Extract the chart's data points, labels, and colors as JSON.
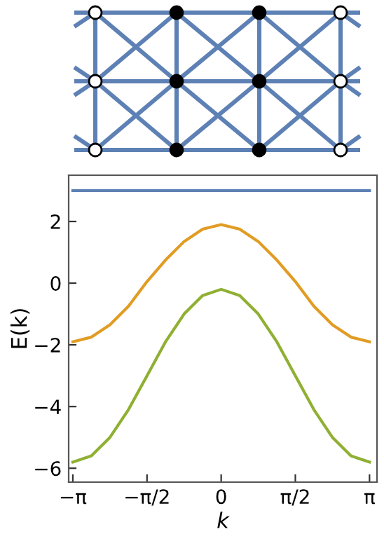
{
  "chart_data": {
    "type": "line",
    "xlabel": "k",
    "ylabel": "E(k)",
    "x": [
      -3.1416,
      -2.7489,
      -2.3562,
      -1.9635,
      -1.5708,
      -1.1781,
      -0.7854,
      -0.3927,
      0,
      0.3927,
      0.7854,
      1.1781,
      1.5708,
      1.9635,
      2.3562,
      2.7489,
      3.1416
    ],
    "series": [
      {
        "color": "#5e81b5",
        "values": [
          3,
          3,
          3,
          3,
          3,
          3,
          3,
          3,
          3,
          3,
          3,
          3,
          3,
          3,
          3,
          3,
          3
        ]
      },
      {
        "color": "#e19c24",
        "values": [
          -1.9,
          -1.75,
          -1.35,
          -0.75,
          0.05,
          0.75,
          1.35,
          1.75,
          1.9,
          1.75,
          1.35,
          0.75,
          0.05,
          -0.75,
          -1.35,
          -1.75,
          -1.9
        ]
      },
      {
        "color": "#8fb032",
        "values": [
          -5.8,
          -5.6,
          -5.0,
          -4.1,
          -3.0,
          -1.9,
          -1.0,
          -0.4,
          -0.2,
          -0.4,
          -1.0,
          -1.9,
          -3.0,
          -4.1,
          -5.0,
          -5.6,
          -5.8
        ]
      }
    ],
    "xlim": [
      -3.23,
      3.3
    ],
    "ylim": [
      -6.45,
      3.5
    ],
    "xticks": [
      {
        "value": -3.1416,
        "label": "−π"
      },
      {
        "value": -1.5708,
        "label": "−π/2"
      },
      0,
      {
        "value": 1.5708,
        "label": "π/2"
      },
      {
        "value": 3.1416,
        "label": "π"
      }
    ],
    "yticks": [
      {
        "value": -6,
        "label": "−6"
      },
      {
        "value": -4,
        "label": "−4"
      },
      {
        "value": -2,
        "label": "−2"
      },
      0,
      2
    ],
    "grid": false,
    "legend": false,
    "marker": "none",
    "line_style": "solid"
  }
}
